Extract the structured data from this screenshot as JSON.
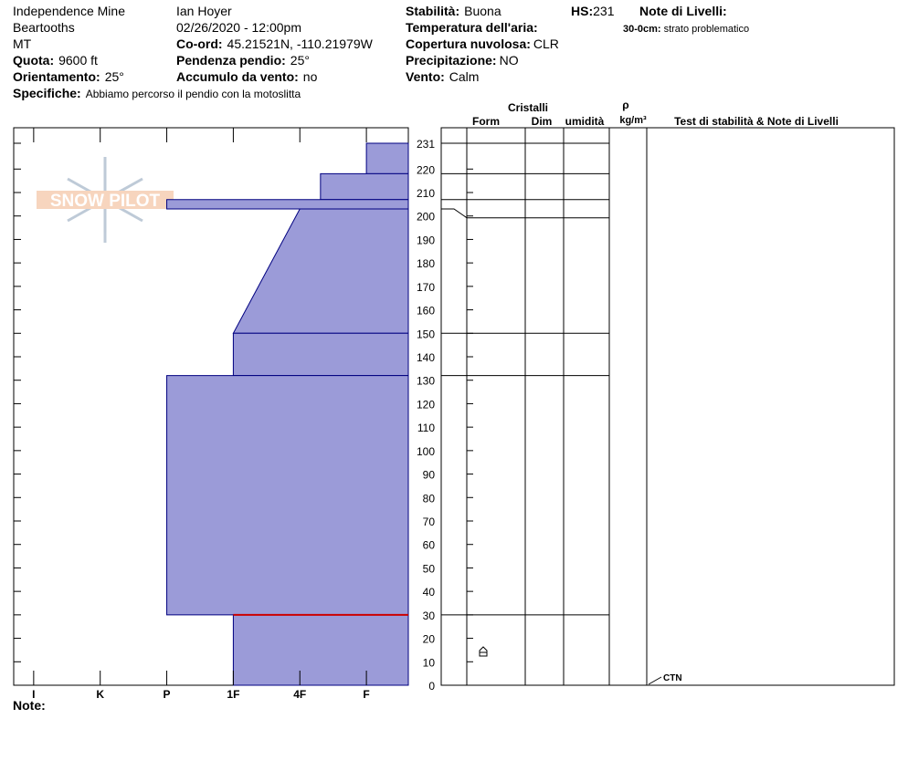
{
  "header": {
    "location": "Independence Mine",
    "range": "Beartooths",
    "state": "MT",
    "observer": "Ian Hoyer",
    "datetime": "02/26/2020 - 12:00pm",
    "elevation": {
      "label": "Quota:",
      "value": "9600 ft"
    },
    "aspect": {
      "label": "Orientamento:",
      "value": "25°"
    },
    "coords": {
      "label": "Co-ord:",
      "value": "45.21521N, -110.21979W"
    },
    "slope": {
      "label": "Pendenza pendio:",
      "value": "25°"
    },
    "wind_loading": {
      "label": "Accumulo da vento:",
      "value": "no"
    },
    "stability": {
      "label": "Stabilità:",
      "value": "Buona"
    },
    "air_temp": {
      "label": "Temperatura dell'aria:"
    },
    "sky": {
      "label": "Copertura nuvolosa:",
      "value": "CLR"
    },
    "precip": {
      "label": "Precipitazione:",
      "value": "NO"
    },
    "wind": {
      "label": "Vento:",
      "value": "Calm"
    },
    "hs": {
      "label": "HS:",
      "value": "231"
    },
    "layer_notes_title": "Note di Livelli:",
    "layer_note": {
      "label": "30-0cm:",
      "value": "strato problematico"
    },
    "specifics": {
      "label": "Specifiche:",
      "value": "Abbiamo percorso il pendio con la motoslitta"
    },
    "notes_label": "Note:",
    "logo": "SNOW PILOT"
  },
  "chart_data": {
    "type": "snow-profile",
    "ylim": [
      0,
      231
    ],
    "yticks": [
      0,
      10,
      20,
      30,
      40,
      50,
      60,
      70,
      80,
      90,
      100,
      110,
      120,
      130,
      140,
      150,
      160,
      170,
      180,
      190,
      200,
      210,
      220,
      231
    ],
    "xlim": [
      -0.3,
      5.63
    ],
    "xticks": [
      {
        "value": 0,
        "label": "I"
      },
      {
        "value": 1,
        "label": "K"
      },
      {
        "value": 2,
        "label": "P"
      },
      {
        "value": 3,
        "label": "1F"
      },
      {
        "value": 4,
        "label": "4F"
      },
      {
        "value": 5,
        "label": "F"
      }
    ],
    "fill": "#9b9bd8",
    "stroke": "#000080",
    "layers": [
      {
        "top": 231,
        "bottom": 218,
        "hardness": [
          5,
          5
        ]
      },
      {
        "top": 218,
        "bottom": 207,
        "hardness": [
          4.31,
          4.31
        ]
      },
      {
        "top": 207,
        "bottom": 203,
        "hardness": [
          2,
          2
        ]
      },
      {
        "top": 203,
        "bottom": 150,
        "hardness": [
          4,
          3
        ]
      },
      {
        "top": 150,
        "bottom": 132,
        "hardness": [
          3,
          3
        ]
      },
      {
        "top": 132,
        "bottom": 30,
        "hardness": [
          2,
          2
        ]
      },
      {
        "top": 30,
        "bottom": 0,
        "hardness": [
          3,
          3
        ]
      }
    ],
    "problem_layer": 30,
    "problem_color": "#cc0000",
    "grain_forms": [
      {
        "depth": 14
      }
    ],
    "tests": [
      {
        "label": "CTN",
        "depth": 0
      }
    ],
    "columns": {
      "crystals": "Cristalli",
      "form": "Form",
      "size": "Dim",
      "moisture": "umidità",
      "rho": "ρ",
      "density_unit": "kg/m³",
      "tests": "Test di stabilità & Note di Livelli"
    }
  }
}
